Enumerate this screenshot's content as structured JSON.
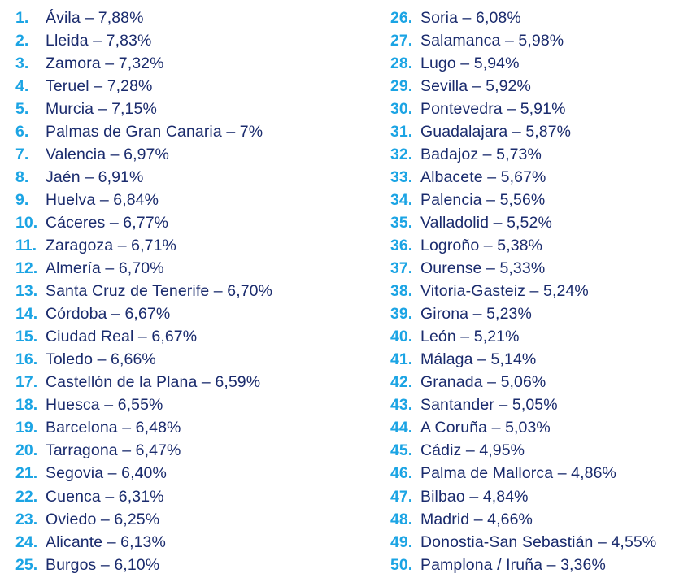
{
  "ranking": {
    "left": [
      {
        "num": "1.",
        "text": "Ávila – 7,88%"
      },
      {
        "num": "2.",
        "text": "Lleida – 7,83%"
      },
      {
        "num": "3.",
        "text": "Zamora – 7,32%"
      },
      {
        "num": "4.",
        "text": "Teruel – 7,28%"
      },
      {
        "num": "5.",
        "text": "Murcia – 7,15%"
      },
      {
        "num": "6.",
        "text": "Palmas de Gran Canaria – 7%"
      },
      {
        "num": "7.",
        "text": "Valencia – 6,97%"
      },
      {
        "num": "8.",
        "text": "Jaén – 6,91%"
      },
      {
        "num": "9.",
        "text": "Huelva – 6,84%"
      },
      {
        "num": "10.",
        "text": "Cáceres – 6,77%"
      },
      {
        "num": "11.",
        "text": "Zaragoza – 6,71%"
      },
      {
        "num": "12.",
        "text": "Almería – 6,70%"
      },
      {
        "num": "13.",
        "text": "Santa Cruz de Tenerife – 6,70%"
      },
      {
        "num": "14.",
        "text": "Córdoba – 6,67%"
      },
      {
        "num": "15.",
        "text": "Ciudad Real – 6,67%"
      },
      {
        "num": "16.",
        "text": "Toledo – 6,66%"
      },
      {
        "num": "17.",
        "text": "Castellón de la Plana – 6,59%"
      },
      {
        "num": "18.",
        "text": "Huesca – 6,55%"
      },
      {
        "num": "19.",
        "text": "Barcelona – 6,48%"
      },
      {
        "num": "20.",
        "text": "Tarragona – 6,47%"
      },
      {
        "num": "21.",
        "text": "Segovia – 6,40%"
      },
      {
        "num": "22.",
        "text": "Cuenca – 6,31%"
      },
      {
        "num": "23.",
        "text": "Oviedo – 6,25%"
      },
      {
        "num": "24.",
        "text": "Alicante – 6,13%"
      },
      {
        "num": "25.",
        "text": "Burgos – 6,10%"
      }
    ],
    "right": [
      {
        "num": "26.",
        "text": "Soria – 6,08%"
      },
      {
        "num": "27.",
        "text": "Salamanca – 5,98%"
      },
      {
        "num": "28.",
        "text": "Lugo – 5,94%"
      },
      {
        "num": "29.",
        "text": "Sevilla – 5,92%"
      },
      {
        "num": "30.",
        "text": "Pontevedra – 5,91%"
      },
      {
        "num": "31.",
        "text": "Guadalajara – 5,87%"
      },
      {
        "num": "32.",
        "text": "Badajoz – 5,73%"
      },
      {
        "num": "33.",
        "text": "Albacete – 5,67%"
      },
      {
        "num": "34.",
        "text": "Palencia – 5,56%"
      },
      {
        "num": "35.",
        "text": "Valladolid – 5,52%"
      },
      {
        "num": "36.",
        "text": "Logroño – 5,38%"
      },
      {
        "num": "37.",
        "text": "Ourense – 5,33%"
      },
      {
        "num": "38.",
        "text": "Vitoria-Gasteiz – 5,24%"
      },
      {
        "num": "39.",
        "text": "Girona – 5,23%"
      },
      {
        "num": "40.",
        "text": "León – 5,21%"
      },
      {
        "num": "41.",
        "text": "Málaga – 5,14%"
      },
      {
        "num": "42.",
        "text": "Granada – 5,06%"
      },
      {
        "num": "43.",
        "text": "Santander – 5,05%"
      },
      {
        "num": "44.",
        "text": "A Coruña – 5,03%"
      },
      {
        "num": "45.",
        "text": "Cádiz – 4,95%"
      },
      {
        "num": "46.",
        "text": "Palma de Mallorca – 4,86%"
      },
      {
        "num": "47.",
        "text": "Bilbao – 4,84%"
      },
      {
        "num": "48.",
        "text": "Madrid – 4,66%"
      },
      {
        "num": "49.",
        "text": "Donostia-San Sebastián – 4,55%"
      },
      {
        "num": "50.",
        "text": "Pamplona / Iruña – 3,36%"
      }
    ]
  },
  "colors": {
    "number": "#1ba4e4",
    "text": "#1a2b6d"
  }
}
